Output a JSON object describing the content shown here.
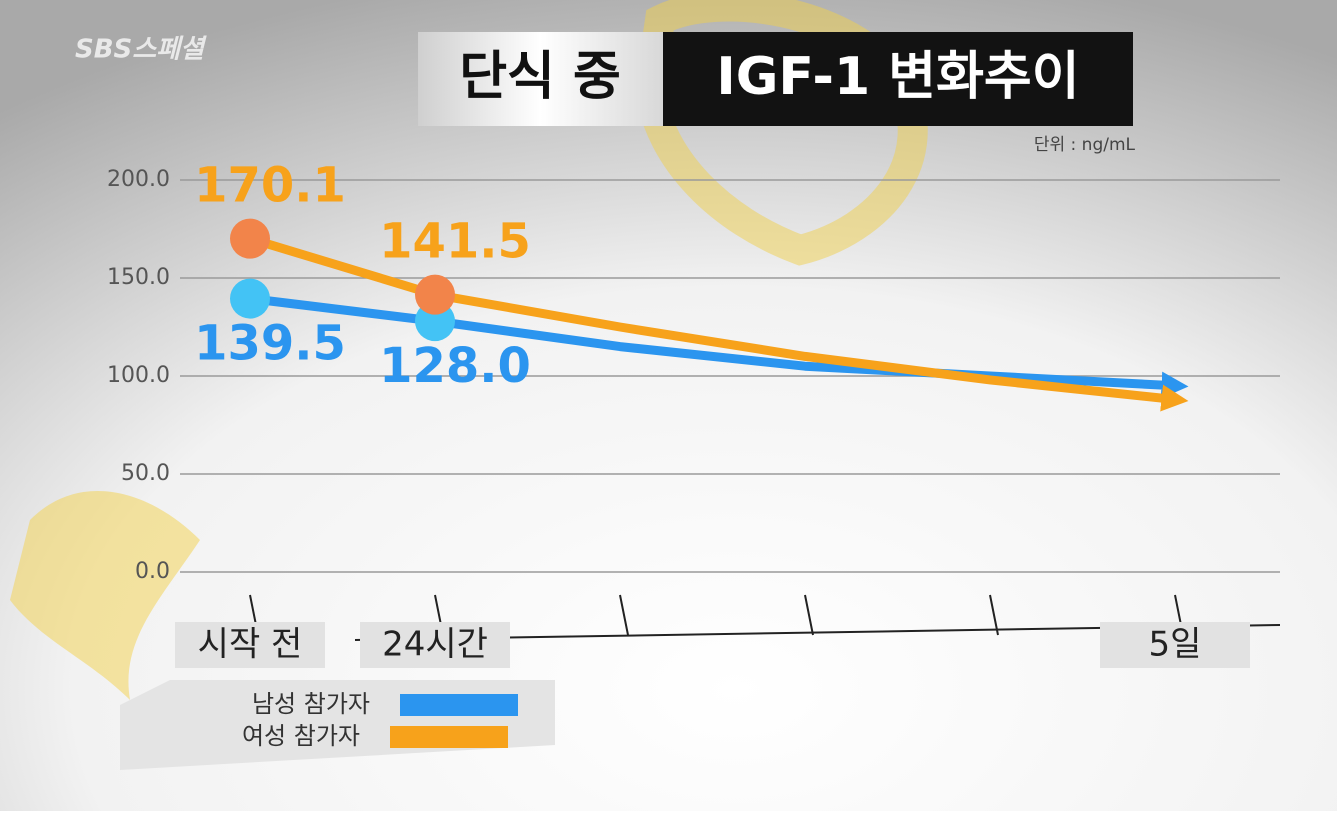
{
  "logo": "SBS스페셜",
  "chart_data": {
    "type": "line",
    "title": "단식 중",
    "title_highlight": "IGF-1 변화추이",
    "unit_label": "단위 : ng/mL",
    "categories": [
      "시작 전",
      "24시간",
      null,
      null,
      null,
      "5일"
    ],
    "series": [
      {
        "name": "남성 참가자",
        "color": "#2b95ef",
        "values": [
          139.5,
          128.0,
          115,
          105,
          100,
          95
        ],
        "value_labels": [
          "139.5",
          "128.0",
          null,
          null,
          null,
          null
        ]
      },
      {
        "name": "여성 참가자",
        "color": "#f7a21b",
        "values": [
          170.1,
          141.5,
          125,
          110,
          98,
          88
        ],
        "value_labels": [
          "170.1",
          "141.5",
          null,
          null,
          null,
          null
        ]
      }
    ],
    "ylim": [
      0,
      200
    ],
    "yticks": [
      {
        "value": 0,
        "label": "0.0"
      },
      {
        "value": 50,
        "label": "50.0"
      },
      {
        "value": 100,
        "label": "100.0"
      },
      {
        "value": 150,
        "label": "150.0"
      },
      {
        "value": 200,
        "label": "200.0"
      }
    ],
    "grid": true
  }
}
